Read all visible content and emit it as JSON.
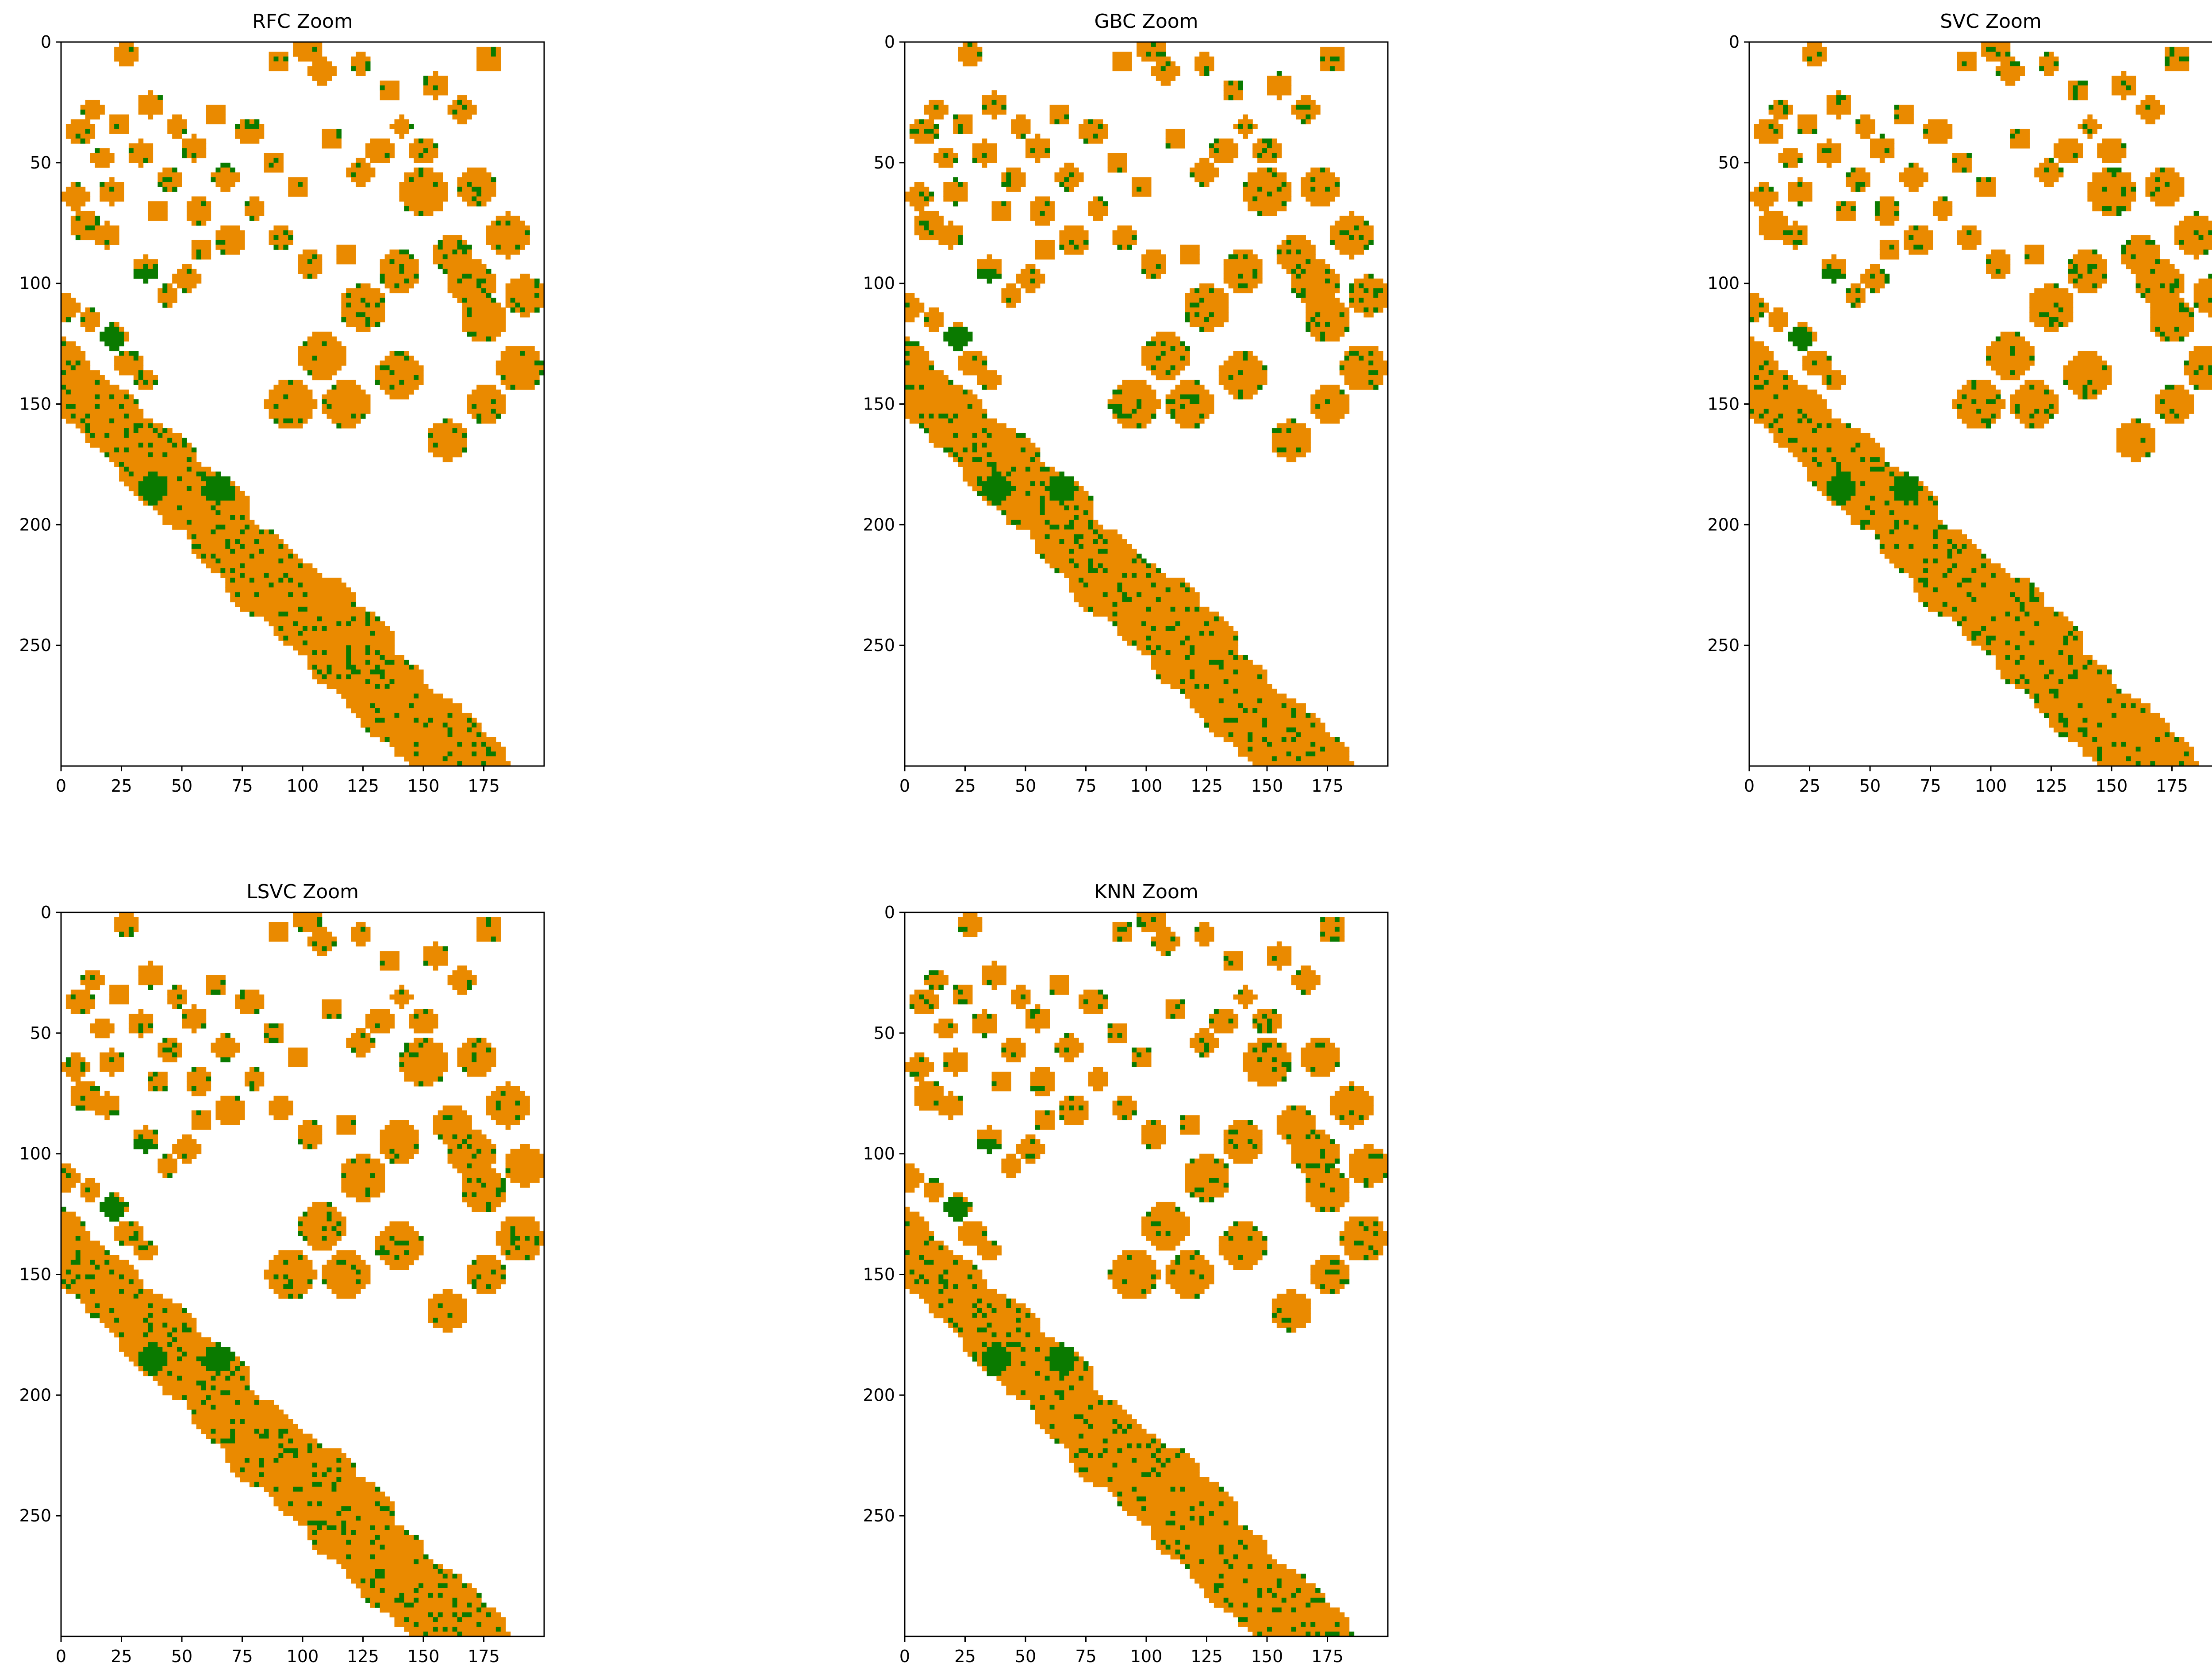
{
  "figure": {
    "background": "#ffffff"
  },
  "colors": {
    "background": "#ffffff",
    "class_1": "#ea8a00",
    "class_2": "#0a7a00",
    "axes": "#000000"
  },
  "chart_data": [
    {
      "type": "heatmap",
      "title": "RFC Zoom",
      "xlabel": "",
      "ylabel": "",
      "xlim": [
        0,
        200
      ],
      "ylim": [
        300,
        0
      ],
      "xticks": [
        0,
        25,
        50,
        75,
        100,
        125,
        150,
        175
      ],
      "yticks": [
        0,
        50,
        100,
        150,
        200,
        250
      ],
      "classes": [
        "background",
        "class_1",
        "class_2"
      ],
      "grid": false,
      "legend": "none"
    },
    {
      "type": "heatmap",
      "title": "GBC  Zoom",
      "xlabel": "",
      "ylabel": "",
      "xlim": [
        0,
        200
      ],
      "ylim": [
        300,
        0
      ],
      "xticks": [
        0,
        25,
        50,
        75,
        100,
        125,
        150,
        175
      ],
      "yticks": [
        0,
        50,
        100,
        150,
        200,
        250
      ],
      "classes": [
        "background",
        "class_1",
        "class_2"
      ],
      "grid": false,
      "legend": "none"
    },
    {
      "type": "heatmap",
      "title": "SVC  Zoom",
      "xlabel": "",
      "ylabel": "",
      "xlim": [
        0,
        200
      ],
      "ylim": [
        300,
        0
      ],
      "xticks": [
        0,
        25,
        50,
        75,
        100,
        125,
        150,
        175
      ],
      "yticks": [
        0,
        50,
        100,
        150,
        200,
        250
      ],
      "classes": [
        "background",
        "class_1",
        "class_2"
      ],
      "grid": false,
      "legend": "none"
    },
    {
      "type": "heatmap",
      "title": "LSVC  Zoom",
      "xlabel": "",
      "ylabel": "",
      "xlim": [
        0,
        200
      ],
      "ylim": [
        300,
        0
      ],
      "xticks": [
        0,
        25,
        50,
        75,
        100,
        125,
        150,
        175
      ],
      "yticks": [
        0,
        50,
        100,
        150,
        200,
        250
      ],
      "classes": [
        "background",
        "class_1",
        "class_2"
      ],
      "grid": false,
      "legend": "none"
    },
    {
      "type": "heatmap",
      "title": "KNN  Zoom",
      "xlabel": "",
      "ylabel": "",
      "xlim": [
        0,
        200
      ],
      "ylim": [
        300,
        0
      ],
      "xticks": [
        0,
        25,
        50,
        75,
        100,
        125,
        150,
        175
      ],
      "yticks": [
        0,
        50,
        100,
        150,
        200,
        250
      ],
      "classes": [
        "background",
        "class_1",
        "class_2"
      ],
      "grid": false,
      "legend": "none"
    }
  ]
}
